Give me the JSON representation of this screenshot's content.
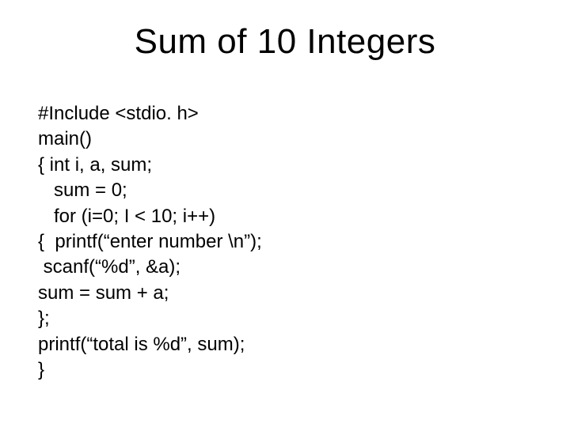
{
  "slide": {
    "title": "Sum of 10 Integers",
    "code_lines": {
      "l0": "#Include <stdio. h>",
      "l1": "main()",
      "l2": "{ int i, a, sum;",
      "l3": "   sum = 0;",
      "l4": "   for (i=0; I < 10; i++)",
      "l5": "{  printf(“enter number \\n”);",
      "l6": " scanf(“%d”, &a);",
      "l7": "sum = sum + a;",
      "l8": "};",
      "l9": "printf(“total is %d”, sum);",
      "l10": "}"
    }
  },
  "style": {
    "background_color": "#ffffff",
    "text_color": "#000000",
    "title_fontsize": 44,
    "body_fontsize": 24,
    "font_family": "Arial"
  }
}
